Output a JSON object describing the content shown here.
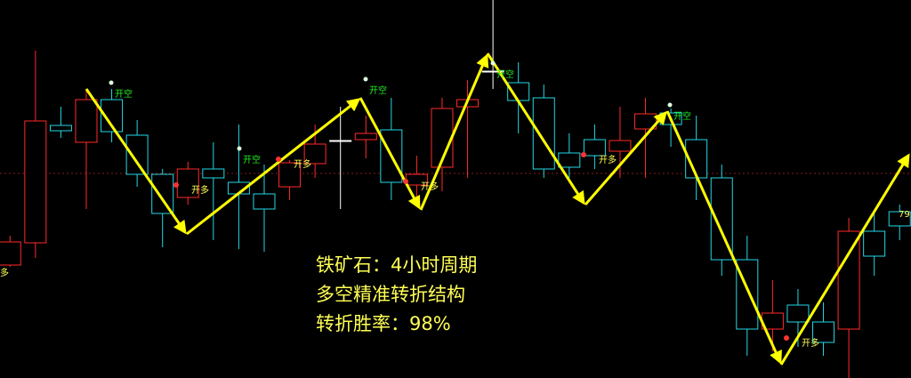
{
  "chart_data": {
    "type": "candlestick",
    "ylim": [
      0,
      425
    ],
    "colors": {
      "up": "#ff2a2a",
      "down": "#22d8e6",
      "flat": "#ffffff",
      "arrow": "#ffff00"
    },
    "candles": {
      "open": [
        127,
        152,
        284,
        265,
        313,
        273,
        229,
        203,
        235,
        220,
        207,
        215,
        241,
        267,
        268,
        279,
        217,
        237,
        305,
        345,
        332,
        315,
        253,
        268,
        255,
        280,
        298,
        268,
        225,
        133,
        55,
        82,
        63,
        55,
        165,
        187
      ],
      "high": [
        160,
        368,
        305,
        325,
        325,
        290,
        235,
        243,
        265,
        285,
        240,
        245,
        285,
        305,
        295,
        315,
        250,
        315,
        335,
        425,
        355,
        330,
        275,
        285,
        305,
        315,
        303,
        295,
        240,
        160,
        110,
        100,
        85,
        180,
        185,
        195
      ],
      "low": [
        125,
        135,
        270,
        190,
        265,
        215,
        147,
        195,
        155,
        145,
        142,
        200,
        225,
        190,
        247,
        200,
        200,
        210,
        225,
        325,
        275,
        225,
        225,
        235,
        225,
        225,
        260,
        200,
        115,
        25,
        30,
        35,
        25,
        0,
        115,
        155
      ],
      "close": [
        153,
        289,
        278,
        313,
        277,
        229,
        185,
        235,
        225,
        207,
        190,
        242,
        263,
        267,
        275,
        220,
        229,
        303,
        313,
        345,
        312,
        235,
        237,
        250,
        267,
        297,
        285,
        225,
        133,
        55,
        73,
        63,
        40,
        165,
        137,
        171
      ]
    },
    "short_signals": [
      "开空",
      "开空",
      "开空",
      "开空",
      "开空"
    ],
    "long_signals": [
      "开多",
      "开多",
      "开多",
      "开多",
      "开多"
    ],
    "short_color": "#22ee22",
    "long_color": "#ffff55",
    "edge_labels": [
      "多",
      "79"
    ],
    "annotation": [
      "铁矿石：4小时周期",
      "多空精准转折结构",
      "转折胜率：98%"
    ]
  }
}
